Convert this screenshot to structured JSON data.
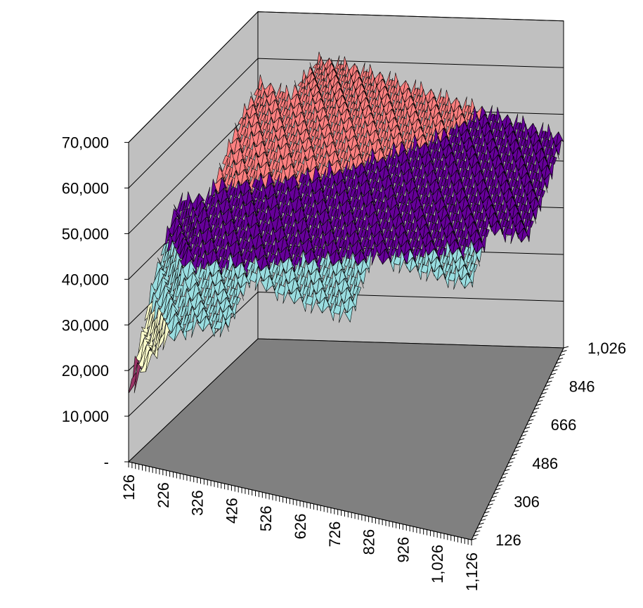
{
  "chart_data": {
    "type": "surface",
    "title": "",
    "zlabel": "",
    "z_ticks": [
      "-",
      "10,000",
      "20,000",
      "30,000",
      "40,000",
      "50,000",
      "60,000",
      "70,000"
    ],
    "zlim": [
      0,
      70000
    ],
    "x_ticks": [
      "126",
      "226",
      "326",
      "426",
      "526",
      "626",
      "726",
      "826",
      "926",
      "1,026",
      "1,126"
    ],
    "xlim": [
      126,
      1126
    ],
    "y_ticks": [
      "126",
      "306",
      "486",
      "666",
      "846",
      "1,026"
    ],
    "ylim": [
      126,
      1026
    ],
    "band_step": 10000,
    "band_colors": {
      "0-10000": "#993366",
      "10000-20000": "#993366",
      "20000-30000": "#ffffcc",
      "30000-40000": "#99dde0",
      "40000-50000": "#660099",
      "50000-60000": "#ff8080",
      "60000-70000": "#ff8080"
    },
    "surface_samples": {
      "description_free": true,
      "rows": [
        {
          "y": 1026,
          "z": [
            null,
            null,
            60000,
            59000,
            57000,
            55000,
            53000,
            51000,
            49000,
            47000,
            45000
          ]
        },
        {
          "y": 846,
          "z": [
            null,
            62000,
            60000,
            57000,
            55000,
            52000,
            50000,
            48000,
            46000,
            44000,
            42000
          ]
        },
        {
          "y": 666,
          "z": [
            null,
            58000,
            55000,
            53000,
            50000,
            48000,
            45000,
            43000,
            42000,
            41000,
            40000
          ]
        },
        {
          "y": 486,
          "z": [
            48000,
            50000,
            48000,
            45000,
            43000,
            41000,
            40000,
            39000,
            38000,
            37000,
            null
          ]
        },
        {
          "y": 306,
          "z": [
            35000,
            42000,
            40000,
            38000,
            36000,
            35000,
            34000,
            null,
            null,
            null,
            null
          ]
        },
        {
          "y": 126,
          "z": [
            15000,
            28000,
            33000,
            34000,
            null,
            null,
            null,
            null,
            null,
            null,
            null
          ]
        }
      ]
    }
  }
}
